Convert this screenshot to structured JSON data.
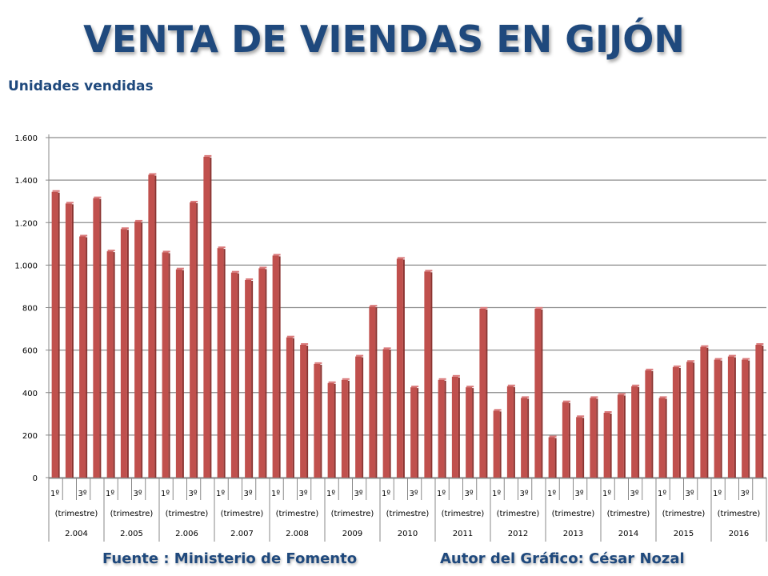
{
  "header": {
    "title": "VENTA DE VIENDAS EN GIJÓN"
  },
  "footer": {
    "source": "Fuente : Ministerio de Fomento",
    "author": "Autor del Gráfico: César Nozal"
  },
  "colors": {
    "bar": "#C0504D",
    "title": "#1F497D",
    "grid": "#8C8C8C"
  },
  "chart_data": {
    "type": "bar",
    "title": "VENTA DE VIENDAS EN GIJÓN",
    "ylabel": "Unidades vendidas",
    "xlabel": "(trimestre)",
    "ylim": [
      0,
      1600
    ],
    "yticks": [
      0,
      200,
      400,
      600,
      800,
      1000,
      1200,
      1400,
      1600
    ],
    "ytick_labels": [
      "0",
      "200",
      "400",
      "600",
      "800",
      "1.000",
      "1.200",
      "1.400",
      "1.600"
    ],
    "grid": true,
    "quarter_labels": [
      "1º",
      "",
      "3º",
      ""
    ],
    "group_sublabel": "(trimestre)",
    "years": [
      "2.004",
      "2.005",
      "2.006",
      "2.007",
      "2.008",
      "2009",
      "2010",
      "2011",
      "2012",
      "2013",
      "2014",
      "2015",
      "2016"
    ],
    "series": [
      {
        "name": "Unidades vendidas",
        "values": [
          1345,
          1290,
          1135,
          1315,
          1065,
          1170,
          1205,
          1425,
          1060,
          980,
          1295,
          1510,
          1080,
          965,
          930,
          985,
          1045,
          660,
          625,
          535,
          445,
          460,
          570,
          805,
          605,
          1030,
          425,
          970,
          460,
          475,
          425,
          795,
          315,
          430,
          375,
          795,
          190,
          355,
          285,
          375,
          305,
          390,
          430,
          505,
          375,
          520,
          545,
          615,
          555,
          570,
          555,
          625
        ]
      }
    ]
  }
}
